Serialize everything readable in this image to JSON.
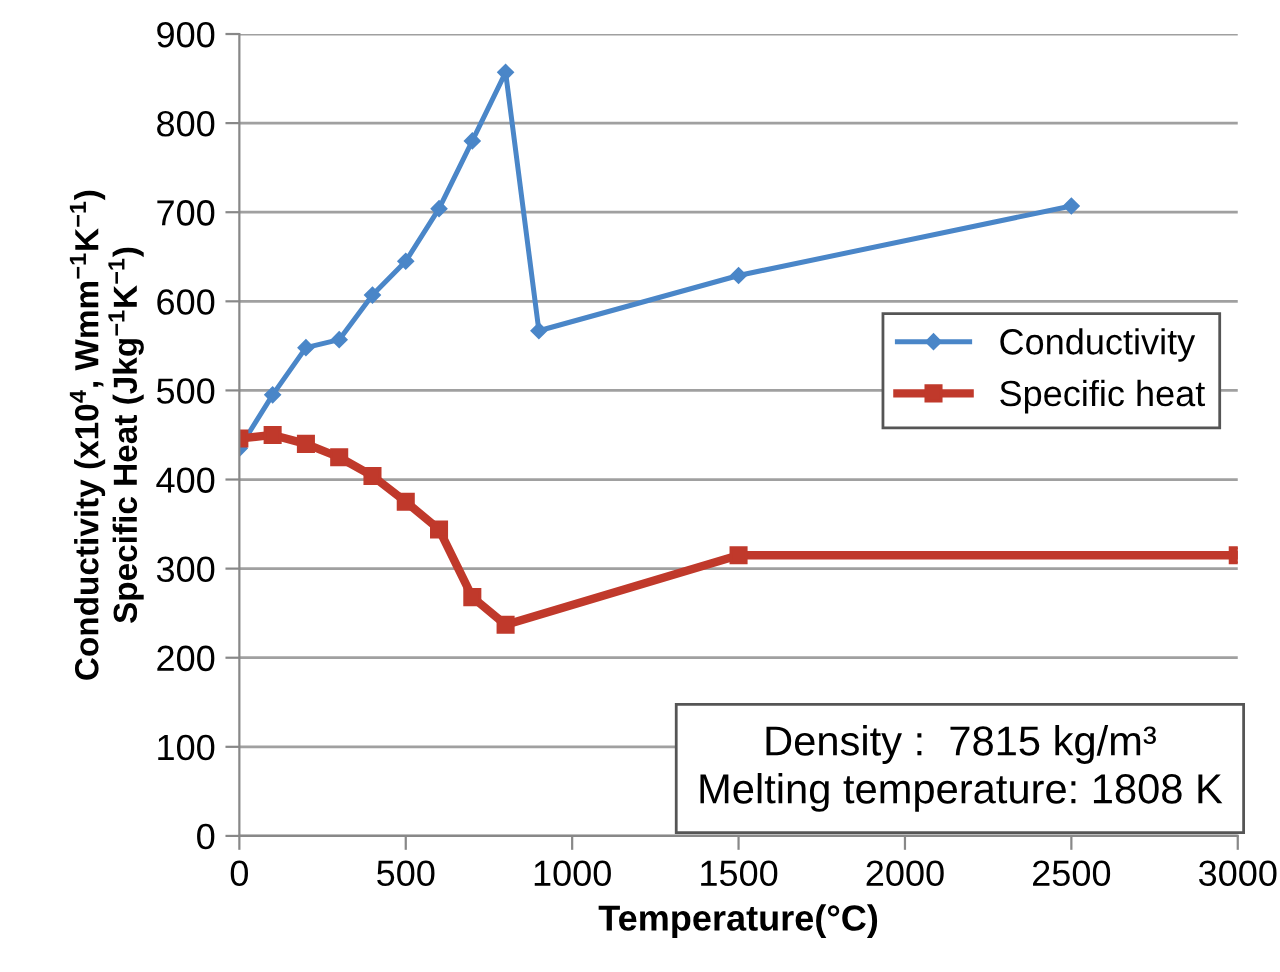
{
  "chart_data": {
    "type": "line",
    "xlabel": "Temperature(°C)",
    "ylabel": "Conductivity (x10$^{4}$, Wmm$^{−1}$K$^{−1}$)\nSpecific Heat (Jkg$^{−1}$K$^{−1}$)",
    "series": [
      {
        "name": "Conductivity",
        "color": "#4a86c8",
        "marker": "diamond",
        "x": [
          0,
          100,
          200,
          300,
          400,
          500,
          600,
          700,
          800,
          900,
          1500,
          2500
        ],
        "values": [
          435,
          495,
          548,
          557,
          607,
          645,
          704,
          780,
          857,
          567,
          629,
          707
        ]
      },
      {
        "name": "Specific heat",
        "color": "#c0392b",
        "marker": "square",
        "x": [
          0,
          100,
          200,
          300,
          400,
          500,
          600,
          700,
          800,
          1500,
          3000
        ],
        "values": [
          446,
          450,
          440,
          425,
          404,
          375,
          344,
          268,
          237,
          315,
          315
        ]
      }
    ],
    "xlim": [
      0,
      3000
    ],
    "xticks": [
      0,
      500,
      1000,
      1500,
      2000,
      2500,
      3000
    ],
    "ylim": [
      0,
      900
    ],
    "yticks": [
      0,
      100,
      200,
      300,
      400,
      500,
      600,
      700,
      800,
      900
    ],
    "grid": "y",
    "legend": "center right",
    "line_style": "solid",
    "annotations": [
      "Density :  7815 kg/m³",
      "Melting temperature: 1808 K"
    ]
  }
}
